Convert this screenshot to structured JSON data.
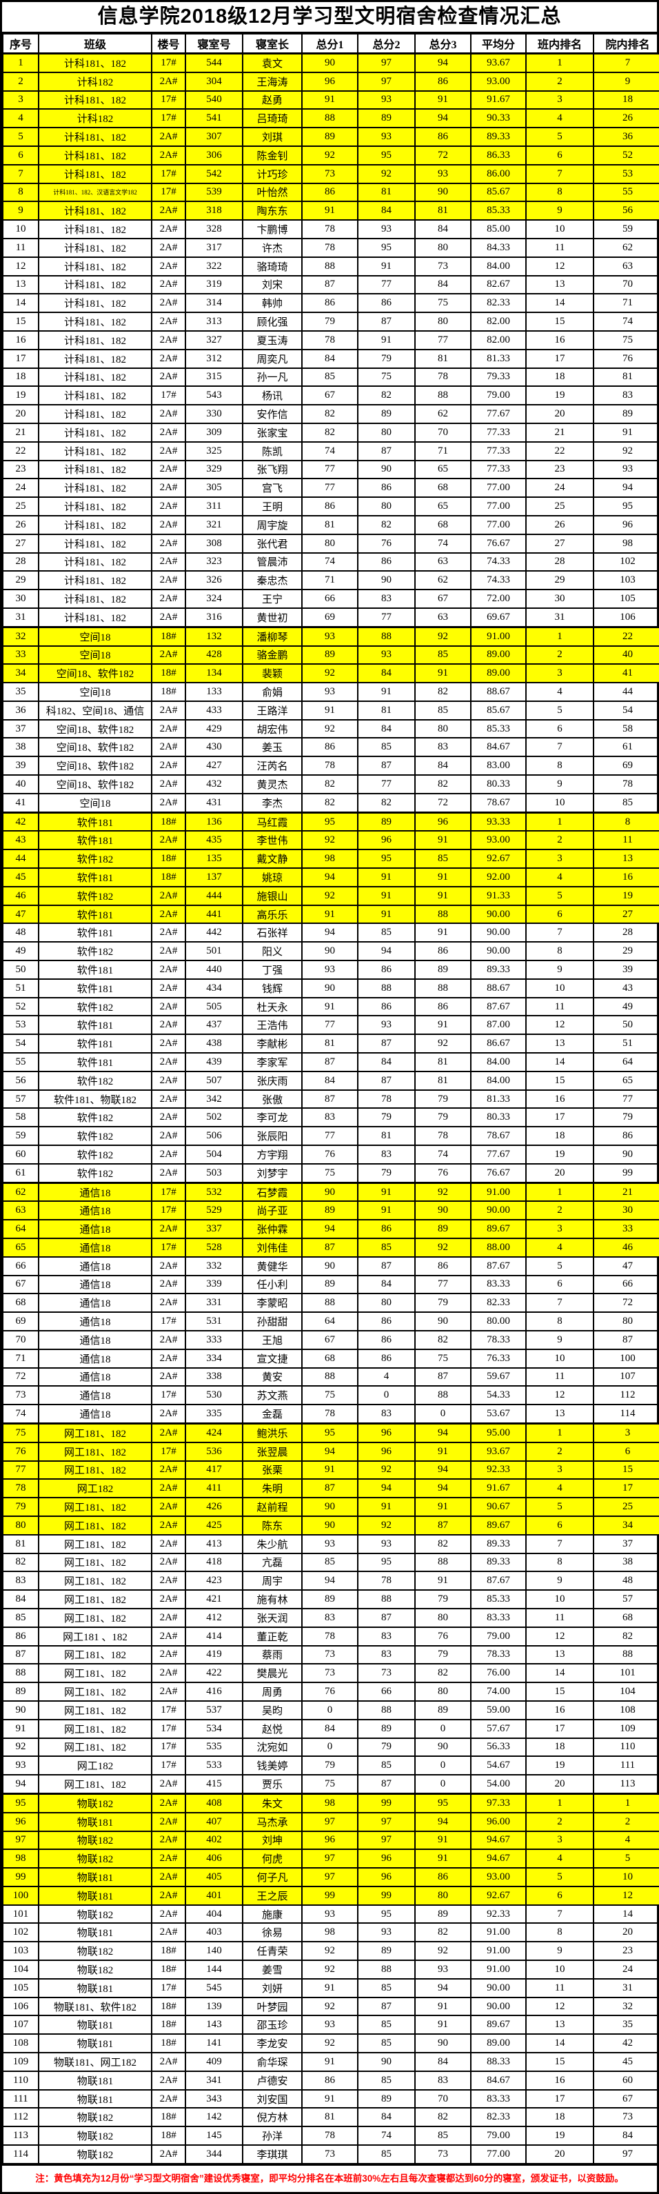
{
  "title": "信息学院2018级12月学习型文明宿舍检查情况汇总",
  "columns": [
    "序号",
    "班级",
    "楼号",
    "寝室号",
    "寝室长",
    "总分1",
    "总分2",
    "总分3",
    "平均分",
    "班内排名",
    "院内排名"
  ],
  "highlight_color": "#FFFF00",
  "note_color": "#FF0000",
  "footer_note": "注：黄色填充为12月份“学习型文明宿舍”建设优秀寝室，即平均分排名在本班前30%左右且每次查寝都达到60分的寝室，颁发证书，以资鼓励。",
  "rows": [
    [
      1,
      "计科181、182",
      "17#",
      "544",
      "袁文",
      90,
      97,
      94,
      "93.67",
      1,
      7,
      1
    ],
    [
      2,
      "计科182",
      "2A#",
      "304",
      "王海涛",
      96,
      97,
      86,
      "93.00",
      2,
      9,
      1
    ],
    [
      3,
      "计科181、182",
      "17#",
      "540",
      "赵勇",
      91,
      93,
      91,
      "91.67",
      3,
      18,
      1
    ],
    [
      4,
      "计科182",
      "17#",
      "541",
      "吕琦琦",
      88,
      89,
      94,
      "90.33",
      4,
      26,
      1
    ],
    [
      5,
      "计科181、182",
      "2A#",
      "307",
      "刘琪",
      89,
      93,
      86,
      "89.33",
      5,
      36,
      1
    ],
    [
      6,
      "计科181、182",
      "2A#",
      "306",
      "陈金钊",
      92,
      95,
      72,
      "86.33",
      6,
      52,
      1
    ],
    [
      7,
      "计科181、182",
      "17#",
      "542",
      "计巧珍",
      73,
      92,
      93,
      "86.00",
      7,
      53,
      1
    ],
    [
      8,
      "计科181、182、汉语言文学182",
      "17#",
      "539",
      "叶怡然",
      86,
      81,
      90,
      "85.67",
      8,
      55,
      1
    ],
    [
      9,
      "计科181、182",
      "2A#",
      "318",
      "陶东东",
      91,
      84,
      81,
      "85.33",
      9,
      56,
      1
    ],
    [
      10,
      "计科181、182",
      "2A#",
      "328",
      "卞鹏博",
      78,
      93,
      84,
      "85.00",
      10,
      59,
      0
    ],
    [
      11,
      "计科181、182",
      "2A#",
      "317",
      "许杰",
      78,
      95,
      80,
      "84.33",
      11,
      62,
      0
    ],
    [
      12,
      "计科181、182",
      "2A#",
      "322",
      "骆琦琦",
      88,
      91,
      73,
      "84.00",
      12,
      63,
      0
    ],
    [
      13,
      "计科181、182",
      "2A#",
      "319",
      "刘宋",
      87,
      77,
      84,
      "82.67",
      13,
      70,
      0
    ],
    [
      14,
      "计科181、182",
      "2A#",
      "314",
      "韩帅",
      86,
      86,
      75,
      "82.33",
      14,
      71,
      0
    ],
    [
      15,
      "计科181、182",
      "2A#",
      "313",
      "顾化强",
      79,
      87,
      80,
      "82.00",
      15,
      74,
      0
    ],
    [
      16,
      "计科181、182",
      "2A#",
      "327",
      "夏玉涛",
      78,
      91,
      77,
      "82.00",
      16,
      75,
      0
    ],
    [
      17,
      "计科181、182",
      "2A#",
      "312",
      "周奕凡",
      84,
      79,
      81,
      "81.33",
      17,
      76,
      0
    ],
    [
      18,
      "计科181、182",
      "2A#",
      "315",
      "孙一凡",
      85,
      75,
      78,
      "79.33",
      18,
      81,
      0
    ],
    [
      19,
      "计科181、182",
      "17#",
      "543",
      "杨讯",
      67,
      82,
      88,
      "79.00",
      19,
      83,
      0
    ],
    [
      20,
      "计科181、182",
      "2A#",
      "330",
      "安作信",
      82,
      89,
      62,
      "77.67",
      20,
      89,
      0
    ],
    [
      21,
      "计科181、182",
      "2A#",
      "309",
      "张家宝",
      82,
      80,
      70,
      "77.33",
      21,
      91,
      0
    ],
    [
      22,
      "计科181、182",
      "2A#",
      "325",
      "陈凯",
      74,
      87,
      71,
      "77.33",
      22,
      92,
      0
    ],
    [
      23,
      "计科181、182",
      "2A#",
      "329",
      "张飞翔",
      77,
      90,
      65,
      "77.33",
      23,
      93,
      0
    ],
    [
      24,
      "计科181、182",
      "2A#",
      "305",
      "宫飞",
      77,
      86,
      68,
      "77.00",
      24,
      94,
      0
    ],
    [
      25,
      "计科181、182",
      "2A#",
      "311",
      "王明",
      86,
      80,
      65,
      "77.00",
      25,
      95,
      0
    ],
    [
      26,
      "计科181、182",
      "2A#",
      "321",
      "周宇旋",
      81,
      82,
      68,
      "77.00",
      26,
      96,
      0
    ],
    [
      27,
      "计科181、182",
      "2A#",
      "308",
      "张代君",
      80,
      76,
      74,
      "76.67",
      27,
      98,
      0
    ],
    [
      28,
      "计科181、182",
      "2A#",
      "323",
      "管晨沛",
      74,
      86,
      63,
      "74.33",
      28,
      102,
      0
    ],
    [
      29,
      "计科181、182",
      "2A#",
      "326",
      "秦忠杰",
      71,
      90,
      62,
      "74.33",
      29,
      103,
      0
    ],
    [
      30,
      "计科181、182",
      "2A#",
      "324",
      "王宁",
      66,
      83,
      67,
      "72.00",
      30,
      105,
      0
    ],
    [
      31,
      "计科181、182",
      "2A#",
      "316",
      "黄世初",
      69,
      77,
      63,
      "69.67",
      31,
      106,
      0
    ],
    [
      32,
      "空间18",
      "18#",
      "132",
      "潘柳琴",
      93,
      88,
      92,
      "91.00",
      1,
      22,
      1
    ],
    [
      33,
      "空间18",
      "2A#",
      "428",
      "骆金鹏",
      89,
      93,
      85,
      "89.00",
      2,
      40,
      1
    ],
    [
      34,
      "空间18、软件182",
      "18#",
      "134",
      "裴颖",
      92,
      84,
      91,
      "89.00",
      3,
      41,
      1
    ],
    [
      35,
      "空间18",
      "18#",
      "133",
      "俞娟",
      93,
      91,
      82,
      "88.67",
      4,
      44,
      0
    ],
    [
      36,
      "科182、空间18、通信",
      "2A#",
      "433",
      "王路洋",
      91,
      81,
      85,
      "85.67",
      5,
      54,
      0
    ],
    [
      37,
      "空间18、软件182",
      "2A#",
      "429",
      "胡宏伟",
      92,
      84,
      80,
      "85.33",
      6,
      58,
      0
    ],
    [
      38,
      "空间18、软件182",
      "2A#",
      "430",
      "姜玉",
      86,
      85,
      83,
      "84.67",
      7,
      61,
      0
    ],
    [
      39,
      "空间18、软件182",
      "2A#",
      "427",
      "汪芮名",
      78,
      87,
      84,
      "83.00",
      8,
      69,
      0
    ],
    [
      40,
      "空间18、软件182",
      "2A#",
      "432",
      "黄灵杰",
      82,
      77,
      82,
      "80.33",
      9,
      78,
      0
    ],
    [
      41,
      "空间18",
      "2A#",
      "431",
      "李杰",
      82,
      82,
      72,
      "78.67",
      10,
      85,
      0
    ],
    [
      42,
      "软件181",
      "18#",
      "136",
      "马红霞",
      95,
      89,
      96,
      "93.33",
      1,
      8,
      1
    ],
    [
      43,
      "软件181",
      "2A#",
      "435",
      "李世伟",
      92,
      96,
      91,
      "93.00",
      2,
      11,
      1
    ],
    [
      44,
      "软件182",
      "18#",
      "135",
      "戴文静",
      98,
      95,
      85,
      "92.67",
      3,
      13,
      1
    ],
    [
      45,
      "软件181",
      "18#",
      "137",
      "姚琼",
      94,
      91,
      91,
      "92.00",
      4,
      16,
      1
    ],
    [
      46,
      "软件182",
      "2A#",
      "444",
      "施银山",
      92,
      91,
      91,
      "91.33",
      5,
      19,
      1
    ],
    [
      47,
      "软件181",
      "2A#",
      "441",
      "高乐乐",
      91,
      91,
      88,
      "90.00",
      6,
      27,
      1
    ],
    [
      48,
      "软件181",
      "2A#",
      "442",
      "石张祥",
      94,
      85,
      91,
      "90.00",
      7,
      28,
      0
    ],
    [
      49,
      "软件182",
      "2A#",
      "501",
      "阳义",
      90,
      94,
      86,
      "90.00",
      8,
      29,
      0
    ],
    [
      50,
      "软件181",
      "2A#",
      "440",
      "丁强",
      93,
      86,
      89,
      "89.33",
      9,
      39,
      0
    ],
    [
      51,
      "软件181",
      "2A#",
      "434",
      "钱辉",
      90,
      88,
      88,
      "88.67",
      10,
      43,
      0
    ],
    [
      52,
      "软件182",
      "2A#",
      "505",
      "杜天永",
      91,
      86,
      86,
      "87.67",
      11,
      49,
      0
    ],
    [
      53,
      "软件181",
      "2A#",
      "437",
      "王浩伟",
      77,
      93,
      91,
      "87.00",
      12,
      50,
      0
    ],
    [
      54,
      "软件181",
      "2A#",
      "438",
      "李献彬",
      81,
      87,
      92,
      "86.67",
      13,
      51,
      0
    ],
    [
      55,
      "软件181",
      "2A#",
      "439",
      "李家军",
      87,
      84,
      81,
      "84.00",
      14,
      64,
      0
    ],
    [
      56,
      "软件182",
      "2A#",
      "507",
      "张庆雨",
      84,
      87,
      81,
      "84.00",
      15,
      65,
      0
    ],
    [
      57,
      "软件181、物联182",
      "2A#",
      "342",
      "张傲",
      87,
      78,
      79,
      "81.33",
      16,
      77,
      0
    ],
    [
      58,
      "软件182",
      "2A#",
      "502",
      "李可龙",
      83,
      79,
      79,
      "80.33",
      17,
      79,
      0
    ],
    [
      59,
      "软件182",
      "2A#",
      "506",
      "张辰阳",
      77,
      81,
      78,
      "78.67",
      18,
      86,
      0
    ],
    [
      60,
      "软件182",
      "2A#",
      "504",
      "方宇翔",
      76,
      83,
      74,
      "77.67",
      19,
      90,
      0
    ],
    [
      61,
      "软件182",
      "2A#",
      "503",
      "刘梦宇",
      75,
      79,
      76,
      "76.67",
      20,
      99,
      0
    ],
    [
      62,
      "通信18",
      "17#",
      "532",
      "石梦霞",
      90,
      91,
      92,
      "91.00",
      1,
      21,
      1
    ],
    [
      63,
      "通信18",
      "17#",
      "529",
      "尚子亚",
      89,
      91,
      90,
      "90.00",
      2,
      30,
      1
    ],
    [
      64,
      "通信18",
      "2A#",
      "337",
      "张仲霖",
      94,
      86,
      89,
      "89.67",
      3,
      33,
      1
    ],
    [
      65,
      "通信18",
      "17#",
      "528",
      "刘伟佳",
      87,
      85,
      92,
      "88.00",
      4,
      46,
      1
    ],
    [
      66,
      "通信18",
      "2A#",
      "332",
      "黄健华",
      90,
      87,
      86,
      "87.67",
      5,
      47,
      0
    ],
    [
      67,
      "通信18",
      "2A#",
      "339",
      "任小利",
      89,
      84,
      77,
      "83.33",
      6,
      66,
      0
    ],
    [
      68,
      "通信18",
      "2A#",
      "331",
      "李蒙昭",
      88,
      80,
      79,
      "82.33",
      7,
      72,
      0
    ],
    [
      69,
      "通信18",
      "17#",
      "531",
      "孙甜甜",
      64,
      86,
      90,
      "80.00",
      8,
      80,
      0
    ],
    [
      70,
      "通信18",
      "2A#",
      "333",
      "王旭",
      67,
      86,
      82,
      "78.33",
      9,
      87,
      0
    ],
    [
      71,
      "通信18",
      "2A#",
      "334",
      "宣文捷",
      68,
      86,
      75,
      "76.33",
      10,
      100,
      0
    ],
    [
      72,
      "通信18",
      "2A#",
      "338",
      "黄安",
      88,
      4,
      87,
      "59.67",
      11,
      107,
      0
    ],
    [
      73,
      "通信18",
      "17#",
      "530",
      "苏文燕",
      75,
      0,
      88,
      "54.33",
      12,
      112,
      0
    ],
    [
      74,
      "通信18",
      "2A#",
      "335",
      "金磊",
      78,
      83,
      0,
      "53.67",
      13,
      114,
      0
    ],
    [
      75,
      "网工181、182",
      "2A#",
      "424",
      "鲍洪乐",
      95,
      96,
      94,
      "95.00",
      1,
      3,
      1
    ],
    [
      76,
      "网工181、182",
      "17#",
      "536",
      "张翌晨",
      94,
      96,
      91,
      "93.67",
      2,
      6,
      1
    ],
    [
      77,
      "网工181、182",
      "2A#",
      "417",
      "张栗",
      91,
      92,
      94,
      "92.33",
      3,
      15,
      1
    ],
    [
      78,
      "网工182",
      "2A#",
      "411",
      "朱明",
      87,
      94,
      94,
      "91.67",
      4,
      17,
      1
    ],
    [
      79,
      "网工181、182",
      "2A#",
      "426",
      "赵前程",
      90,
      91,
      91,
      "90.67",
      5,
      25,
      1
    ],
    [
      80,
      "网工181、182",
      "2A#",
      "425",
      "陈东",
      90,
      92,
      87,
      "89.67",
      6,
      34,
      1
    ],
    [
      81,
      "网工181、182",
      "2A#",
      "413",
      "朱少航",
      93,
      93,
      82,
      "89.33",
      7,
      37,
      0
    ],
    [
      82,
      "网工181、182",
      "2A#",
      "418",
      "亢磊",
      85,
      95,
      88,
      "89.33",
      8,
      38,
      0
    ],
    [
      83,
      "网工181、182",
      "2A#",
      "423",
      "周宇",
      94,
      78,
      91,
      "87.67",
      9,
      48,
      0
    ],
    [
      84,
      "网工181、182",
      "2A#",
      "421",
      "施有林",
      89,
      88,
      79,
      "85.33",
      10,
      57,
      0
    ],
    [
      85,
      "网工181、182",
      "2A#",
      "412",
      "张天润",
      83,
      87,
      80,
      "83.33",
      11,
      68,
      0
    ],
    [
      86,
      "网工181 、182",
      "2A#",
      "414",
      "董正乾",
      78,
      83,
      76,
      "79.00",
      12,
      82,
      0
    ],
    [
      87,
      "网工181、182",
      "2A#",
      "419",
      "蔡雨",
      73,
      83,
      79,
      "78.33",
      13,
      88,
      0
    ],
    [
      88,
      "网工181、182",
      "2A#",
      "422",
      "樊晨光",
      73,
      73,
      82,
      "76.00",
      14,
      101,
      0
    ],
    [
      89,
      "网工181、182",
      "2A#",
      "416",
      "周勇",
      76,
      66,
      80,
      "74.00",
      15,
      104,
      0
    ],
    [
      90,
      "网工181、182",
      "17#",
      "537",
      "吴昀",
      0,
      88,
      89,
      "59.00",
      16,
      108,
      0
    ],
    [
      91,
      "网工181、182",
      "17#",
      "534",
      "赵悦",
      84,
      89,
      0,
      "57.67",
      17,
      109,
      0
    ],
    [
      92,
      "网工181、182",
      "17#",
      "535",
      "沈宛如",
      0,
      79,
      90,
      "56.33",
      18,
      110,
      0
    ],
    [
      93,
      "网工182",
      "17#",
      "533",
      "钱美婷",
      79,
      85,
      0,
      "54.67",
      19,
      111,
      0
    ],
    [
      94,
      "网工181、182",
      "2A#",
      "415",
      "贾乐",
      75,
      87,
      0,
      "54.00",
      20,
      113,
      0
    ],
    [
      95,
      "物联182",
      "2A#",
      "408",
      "朱文",
      98,
      99,
      95,
      "97.33",
      1,
      1,
      1
    ],
    [
      96,
      "物联181",
      "2A#",
      "407",
      "马杰承",
      97,
      97,
      94,
      "96.00",
      2,
      2,
      1
    ],
    [
      97,
      "物联182",
      "2A#",
      "402",
      "刘坤",
      96,
      97,
      91,
      "94.67",
      3,
      4,
      1
    ],
    [
      98,
      "物联182",
      "2A#",
      "406",
      "何虎",
      97,
      96,
      91,
      "94.67",
      4,
      5,
      1
    ],
    [
      99,
      "物联181",
      "2A#",
      "405",
      "何子凡",
      97,
      96,
      86,
      "93.00",
      5,
      10,
      1
    ],
    [
      100,
      "物联181",
      "2A#",
      "401",
      "王之辰",
      99,
      99,
      80,
      "92.67",
      6,
      12,
      1
    ],
    [
      101,
      "物联182",
      "2A#",
      "404",
      "施康",
      93,
      95,
      89,
      "92.33",
      7,
      14,
      0
    ],
    [
      102,
      "物联181",
      "2A#",
      "403",
      "徐易",
      98,
      93,
      82,
      "91.00",
      8,
      20,
      0
    ],
    [
      103,
      "物联182",
      "18#",
      "140",
      "任青荣",
      92,
      89,
      92,
      "91.00",
      9,
      23,
      0
    ],
    [
      104,
      "物联182",
      "18#",
      "144",
      "姜雪",
      92,
      88,
      93,
      "91.00",
      10,
      24,
      0
    ],
    [
      105,
      "物联181",
      "17#",
      "545",
      "刘妍",
      91,
      85,
      94,
      "90.00",
      11,
      31,
      0
    ],
    [
      106,
      "物联181、软件182",
      "18#",
      "139",
      "叶梦园",
      92,
      87,
      91,
      "90.00",
      12,
      32,
      0
    ],
    [
      107,
      "物联181",
      "18#",
      "143",
      "邵玉珍",
      93,
      85,
      91,
      "89.67",
      13,
      35,
      0
    ],
    [
      108,
      "物联181",
      "18#",
      "141",
      "李龙安",
      92,
      85,
      90,
      "89.00",
      14,
      42,
      0
    ],
    [
      109,
      "物联181、网工182",
      "2A#",
      "409",
      "俞华琛",
      91,
      90,
      84,
      "88.33",
      15,
      45,
      0
    ],
    [
      110,
      "物联181",
      "2A#",
      "341",
      "卢德安",
      86,
      85,
      83,
      "84.67",
      16,
      60,
      0
    ],
    [
      111,
      "物联181",
      "2A#",
      "343",
      "刘安国",
      91,
      89,
      70,
      "83.33",
      17,
      67,
      0
    ],
    [
      112,
      "物联182",
      "18#",
      "142",
      "倪方林",
      81,
      84,
      82,
      "82.33",
      18,
      73,
      0
    ],
    [
      113,
      "物联182",
      "18#",
      "145",
      "孙洋",
      78,
      74,
      85,
      "79.00",
      19,
      84,
      0
    ],
    [
      114,
      "物联182",
      "2A#",
      "344",
      "李琪琪",
      73,
      85,
      73,
      "77.00",
      20,
      97,
      0
    ]
  ]
}
